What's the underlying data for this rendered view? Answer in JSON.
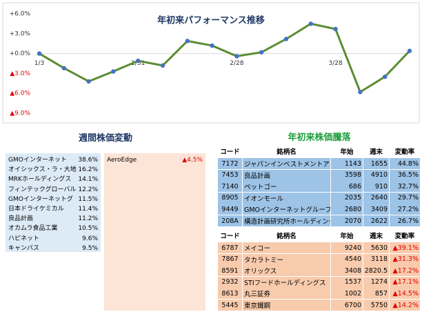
{
  "chart_data": {
    "type": "line",
    "title": "年初来パフォーマンス推移",
    "categories": [
      "1/3",
      null,
      null,
      null,
      "1/31",
      null,
      null,
      null,
      "2/28",
      null,
      null,
      null,
      "3/28",
      null,
      null,
      null
    ],
    "series": [
      {
        "color": "#5b8c32",
        "marker_color": "#4472c4",
        "values": [
          0,
          -2.2,
          -4.2,
          -2.7,
          -1.1,
          -1.8,
          1.9,
          1.2,
          -0.4,
          0.2,
          2.2,
          4.5,
          3.7,
          -5.8,
          -3.5,
          0.4
        ]
      }
    ],
    "ylim": [
      -9,
      6
    ],
    "yticks": [
      {
        "value": 6,
        "label": "+6.0%"
      },
      {
        "value": 3,
        "label": "+3.0%"
      },
      {
        "value": 0,
        "label": "+0.0%"
      },
      {
        "value": -3,
        "label": "▲3.0%"
      },
      {
        "value": -6,
        "label": "▲6.0%"
      },
      {
        "value": -9,
        "label": "▲9.0%"
      }
    ],
    "grid": false
  },
  "weekly": {
    "title": "週間株価変動",
    "gainers": [
      [
        "GMOインターネット",
        "38.6%"
      ],
      [
        "オイシックス・ラ・大地",
        "16.2%"
      ],
      [
        "MRKホールディングス",
        "14.1%"
      ],
      [
        "フィンテックグローバル",
        "12.2%"
      ],
      [
        "GMOインターネットグ",
        "11.5%"
      ],
      [
        "日本ドライケミカル",
        "11.4%"
      ],
      [
        "良品計画",
        "11.2%"
      ],
      [
        "オカムラ食品工業",
        "10.5%"
      ],
      [
        "ハピネット",
        "9.6%"
      ],
      [
        "キャンバス",
        "9.5%"
      ]
    ],
    "losers": [
      [
        "AeroEdge",
        "▲4.5%"
      ]
    ]
  },
  "ytd": {
    "title": "年初来株価騰落",
    "header": [
      "コード",
      "銘柄名",
      "年始",
      "週末",
      "変動率"
    ],
    "gainers": [
      [
        "7172",
        "ジャパンインベストメントアドバイザー",
        "1143",
        "1655",
        "44.8%"
      ],
      [
        "7453",
        "良品計画",
        "3598",
        "4910",
        "36.5%"
      ],
      [
        "7140",
        "ペットゴー",
        "686",
        "910",
        "32.7%"
      ],
      [
        "8905",
        "イオンモール",
        "2035",
        "2640",
        "29.7%"
      ],
      [
        "9449",
        "GMOインターネットグループ",
        "2680",
        "3409",
        "27.2%"
      ],
      [
        "208A",
        "構造計画研究所ホールディングス",
        "2070",
        "2622",
        "26.7%"
      ]
    ],
    "losers": [
      [
        "6787",
        "メイコー",
        "9240",
        "5630",
        "▲39.1%"
      ],
      [
        "7867",
        "タカラトミー",
        "4540",
        "3118",
        "▲31.3%"
      ],
      [
        "8591",
        "オリックス",
        "3408",
        "2820.5",
        "▲17.2%"
      ],
      [
        "2932",
        "STIフードホールディングス",
        "1537",
        "1274",
        "▲17.1%"
      ],
      [
        "8613",
        "丸三証券",
        "1002",
        "857",
        "▲14.5%"
      ],
      [
        "5445",
        "東京鐵鋼",
        "6700",
        "5750",
        "▲14.2%"
      ]
    ]
  }
}
